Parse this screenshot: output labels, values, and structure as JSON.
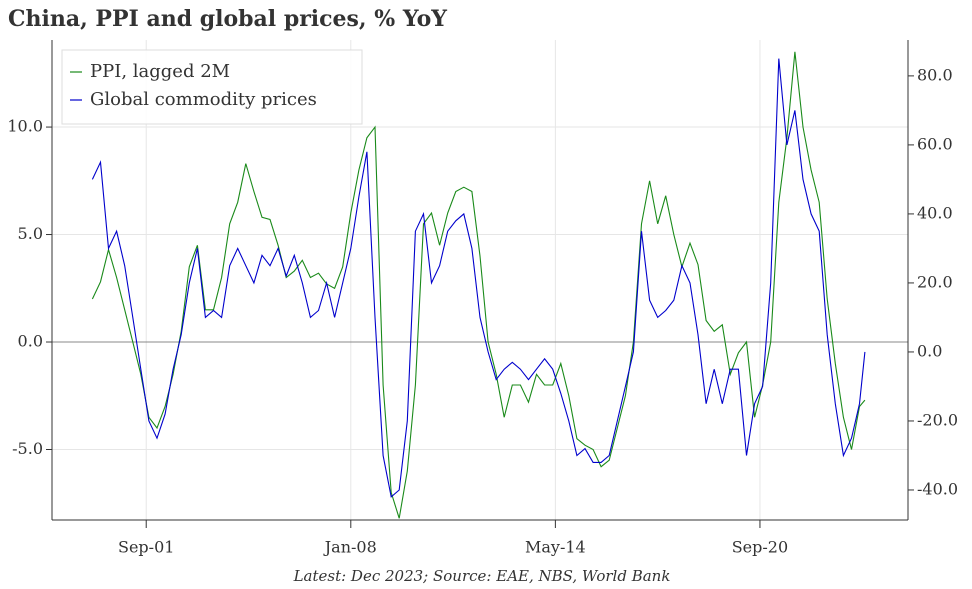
{
  "chart_data": {
    "type": "line",
    "title": "China, PPI and global prices, % YoY",
    "note": "Latest: Dec 2023; Source: EAE, NBS, World Bank",
    "x": [
      "2000-01",
      "2000-04",
      "2000-07",
      "2000-10",
      "2001-01",
      "2001-04",
      "2001-07",
      "2001-10",
      "2002-01",
      "2002-04",
      "2002-07",
      "2002-10",
      "2003-01",
      "2003-04",
      "2003-07",
      "2003-10",
      "2004-01",
      "2004-04",
      "2004-07",
      "2004-10",
      "2005-01",
      "2005-04",
      "2005-07",
      "2005-10",
      "2006-01",
      "2006-04",
      "2006-07",
      "2006-10",
      "2007-01",
      "2007-04",
      "2007-07",
      "2007-10",
      "2008-01",
      "2008-04",
      "2008-07",
      "2008-10",
      "2009-01",
      "2009-04",
      "2009-07",
      "2009-10",
      "2010-01",
      "2010-04",
      "2010-07",
      "2010-10",
      "2011-01",
      "2011-04",
      "2011-07",
      "2011-10",
      "2012-01",
      "2012-04",
      "2012-07",
      "2012-10",
      "2013-01",
      "2013-04",
      "2013-07",
      "2013-10",
      "2014-01",
      "2014-04",
      "2014-07",
      "2014-10",
      "2015-01",
      "2015-04",
      "2015-07",
      "2015-10",
      "2016-01",
      "2016-04",
      "2016-07",
      "2016-10",
      "2017-01",
      "2017-04",
      "2017-07",
      "2017-10",
      "2018-01",
      "2018-04",
      "2018-07",
      "2018-10",
      "2019-01",
      "2019-04",
      "2019-07",
      "2019-10",
      "2020-01",
      "2020-04",
      "2020-07",
      "2020-10",
      "2021-01",
      "2021-04",
      "2021-07",
      "2021-10",
      "2022-01",
      "2022-04",
      "2022-07",
      "2022-10",
      "2023-01",
      "2023-04",
      "2023-07",
      "2023-10",
      "2023-12"
    ],
    "series": [
      {
        "name": "PPI, lagged 2M",
        "color": "#1a8a1a",
        "axis": "y",
        "values": [
          2.0,
          2.8,
          4.3,
          3.0,
          1.5,
          0.0,
          -1.5,
          -3.5,
          -4.0,
          -3.0,
          -1.5,
          0.5,
          3.5,
          4.5,
          1.5,
          1.5,
          3.0,
          5.5,
          6.5,
          8.3,
          7.0,
          5.8,
          5.7,
          4.5,
          3.0,
          3.3,
          3.8,
          3.0,
          3.2,
          2.7,
          2.5,
          3.5,
          6.0,
          8.0,
          9.5,
          10.0,
          -2.0,
          -7.0,
          -8.2,
          -6.0,
          -2.0,
          5.5,
          6.0,
          4.5,
          6.0,
          7.0,
          7.2,
          7.0,
          4.0,
          0.0,
          -1.5,
          -3.5,
          -2.0,
          -2.0,
          -2.8,
          -1.5,
          -2.0,
          -2.0,
          -1.0,
          -2.5,
          -4.5,
          -4.8,
          -5.0,
          -5.8,
          -5.5,
          -4.0,
          -2.5,
          0.0,
          5.5,
          7.5,
          5.5,
          6.8,
          5.0,
          3.5,
          4.6,
          3.6,
          1.0,
          0.5,
          0.8,
          -1.5,
          -0.5,
          0.0,
          -3.5,
          -2.0,
          0.0,
          6.5,
          9.5,
          13.5,
          10.0,
          8.0,
          6.5,
          2.0,
          -1.0,
          -3.5,
          -5.0,
          -3.0,
          -2.7
        ]
      },
      {
        "name": "Global commodity prices",
        "color": "#0000cc",
        "axis": "y2",
        "values": [
          50,
          55,
          30,
          35,
          25,
          10,
          -5,
          -20,
          -25,
          -18,
          -5,
          5,
          20,
          30,
          10,
          12,
          10,
          25,
          30,
          25,
          20,
          28,
          25,
          30,
          22,
          28,
          20,
          10,
          12,
          20,
          10,
          20,
          30,
          45,
          58,
          10,
          -30,
          -42,
          -40,
          -20,
          35,
          40,
          20,
          25,
          35,
          38,
          40,
          30,
          10,
          0,
          -8,
          -5,
          -3,
          -5,
          -8,
          -5,
          -2,
          -5,
          -12,
          -20,
          -30,
          -28,
          -32,
          -32,
          -30,
          -20,
          -10,
          0,
          35,
          15,
          10,
          12,
          15,
          25,
          20,
          5,
          -15,
          -5,
          -15,
          -5,
          -5,
          -30,
          -15,
          -10,
          20,
          85,
          60,
          70,
          50,
          40,
          35,
          5,
          -15,
          -30,
          -25,
          -15,
          0
        ]
      }
    ],
    "xlim": [
      "1998-10",
      "2025-04"
    ],
    "xticks": [
      {
        "value": "2001-09",
        "label": "Sep-01"
      },
      {
        "value": "2008-01",
        "label": "Jan-08"
      },
      {
        "value": "2014-05",
        "label": "May-14"
      },
      {
        "value": "2020-09",
        "label": "Sep-20"
      }
    ],
    "ylim": [
      -8.28,
      14.05
    ],
    "yticks": [
      {
        "value": -5,
        "label": "-5.0"
      },
      {
        "value": 0,
        "label": "0.0"
      },
      {
        "value": 5,
        "label": "5.0"
      },
      {
        "value": 10,
        "label": "10.0"
      }
    ],
    "y2lim": [
      -48.7,
      90.4
    ],
    "y2ticks": [
      {
        "value": -40,
        "label": "-40.0"
      },
      {
        "value": -20,
        "label": "-20.0"
      },
      {
        "value": 0,
        "label": "0.0"
      },
      {
        "value": 20,
        "label": "20.0"
      },
      {
        "value": 40,
        "label": "40.0"
      },
      {
        "value": 60,
        "label": "60.0"
      },
      {
        "value": 80,
        "label": "80.0"
      }
    ],
    "grid": true,
    "legend": "upper left"
  }
}
